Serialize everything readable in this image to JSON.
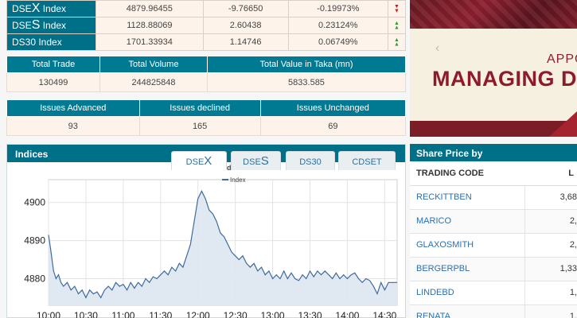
{
  "indices_table": [
    {
      "name_prefix": "DSE",
      "name_big": "X",
      "name_suffix": " Index",
      "value": "4879.96455",
      "change": "-9.76650",
      "percent": "-0.19973%",
      "direction": "down"
    },
    {
      "name_prefix": "DSE",
      "name_big": "S",
      "name_suffix": " Index",
      "value": "1128.88069",
      "change": "2.60438",
      "percent": "0.23124%",
      "direction": "up"
    },
    {
      "name_prefix": "DS30 Index",
      "name_big": "",
      "name_suffix": "",
      "value": "1701.33934",
      "change": "1.14746",
      "percent": "0.06749%",
      "direction": "up"
    }
  ],
  "trade_stats": {
    "headers": [
      "Total Trade",
      "Total Volume",
      "Total Value in Taka (mn)"
    ],
    "values": [
      "130499",
      "244825848",
      "5833.585"
    ]
  },
  "issue_stats": {
    "headers": [
      "Issues Advanced",
      "Issues declined",
      "Issues Unchanged"
    ],
    "values": [
      "93",
      "165",
      "69"
    ]
  },
  "banner": {
    "line1": "APPO",
    "line2": "MANAGING D"
  },
  "indices_panel": {
    "title": "Indices",
    "tabs": [
      {
        "prefix": "DSE",
        "big": "X"
      },
      {
        "prefix": "DSE",
        "big": "S"
      },
      {
        "prefix": "DS30",
        "big": ""
      },
      {
        "prefix": "CDSET",
        "big": ""
      }
    ],
    "active_tab": 0
  },
  "chart_data": {
    "type": "area",
    "title": "DSE Broad Index",
    "legend": "Index",
    "legend_position": "top-center",
    "grid": true,
    "x_ticks": [
      "10:00",
      "10:30",
      "11:00",
      "11:30",
      "12:00",
      "12:30",
      "13:00",
      "13:30",
      "14:00",
      "14:30"
    ],
    "y_ticks": [
      4880,
      4890,
      4900
    ],
    "ylim": [
      4873,
      4906
    ],
    "x_minutes": [
      0,
      2,
      4,
      6,
      8,
      10,
      12,
      15,
      18,
      21,
      24,
      27,
      30,
      33,
      36,
      39,
      42,
      45,
      48,
      51,
      54,
      57,
      60,
      63,
      66,
      69,
      72,
      75,
      78,
      81,
      84,
      87,
      90,
      93,
      96,
      99,
      102,
      105,
      108,
      111,
      114,
      117,
      120,
      123,
      126,
      129,
      132,
      135,
      138,
      141,
      144,
      147,
      150,
      153,
      156,
      159,
      162,
      165,
      168,
      171,
      174,
      177,
      180,
      183,
      186,
      189,
      192,
      195,
      198,
      201,
      204,
      207,
      210,
      213,
      216,
      219,
      222,
      225,
      228,
      231,
      234,
      237,
      240,
      243,
      246,
      249,
      252,
      255,
      258,
      261,
      264,
      267,
      270,
      273,
      276,
      280
    ],
    "values": [
      4891.5,
      4887,
      4882,
      4880,
      4881,
      4879,
      4878,
      4879,
      4877,
      4878,
      4876,
      4877,
      4875,
      4877,
      4876,
      4876.5,
      4875,
      4877,
      4878,
      4877,
      4879,
      4878,
      4878.5,
      4877,
      4879,
      4877.5,
      4879,
      4878,
      4880,
      4879,
      4880.5,
      4880,
      4881,
      4882,
      4881,
      4883,
      4882,
      4884,
      4883,
      4886,
      4889,
      4895,
      4901,
      4903,
      4901,
      4898,
      4897,
      4895,
      4892,
      4891,
      4889,
      4887,
      4886,
      4885,
      4886,
      4884,
      4883,
      4884,
      4882,
      4883,
      4881,
      4882,
      4880,
      4881,
      4880,
      4882,
      4880,
      4881.5,
      4880,
      4879.5,
      4881,
      4880,
      4882,
      4880.5,
      4882,
      4881,
      4882,
      4881,
      4880,
      4881.5,
      4880,
      4881,
      4880,
      4881,
      4881.5,
      4880,
      4879,
      4880,
      4879.5,
      4878,
      4876,
      4879,
      4877,
      4879,
      4879,
      4879
    ]
  },
  "share_panel": {
    "title": "Share Price by",
    "col_code": "TRADING CODE",
    "col_value": "L",
    "rows": [
      {
        "code": "RECKITTBEN",
        "value": "3,68"
      },
      {
        "code": "MARICO",
        "value": "2,"
      },
      {
        "code": "GLAXOSMITH",
        "value": "2,"
      },
      {
        "code": "BERGERPBL",
        "value": "1,33"
      },
      {
        "code": "LINDEBD",
        "value": "1,"
      },
      {
        "code": "RENATA",
        "value": "1,"
      }
    ]
  },
  "colors": {
    "header": "#006f88",
    "up": "#2aa02a",
    "down": "#c0201c",
    "line": "#3f6a9c",
    "area": "#dde6f0"
  }
}
